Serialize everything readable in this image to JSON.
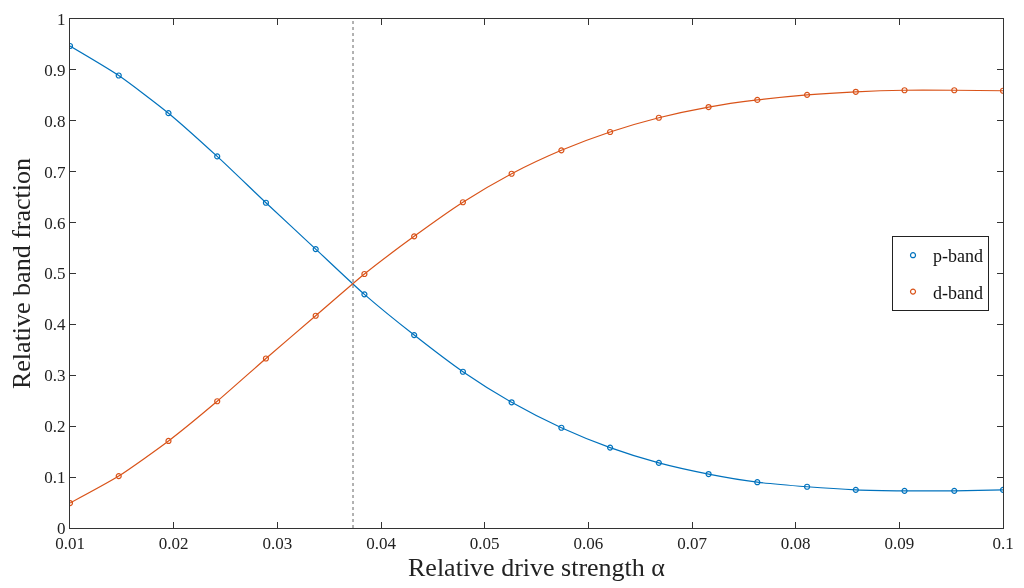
{
  "chart_data": {
    "type": "line",
    "xlabel": "Relative drive strength α",
    "ylabel": "Relative band fraction",
    "x": [
      0.01,
      0.0147,
      0.0195,
      0.0242,
      0.0289,
      0.0337,
      0.0384,
      0.0432,
      0.0479,
      0.0526,
      0.0574,
      0.0621,
      0.0668,
      0.0716,
      0.0763,
      0.0811,
      0.0858,
      0.0905,
      0.0953,
      0.1
    ],
    "series": [
      {
        "name": "p-band",
        "color": "#0072bd",
        "values": [
          0.947,
          0.889,
          0.815,
          0.73,
          0.639,
          0.548,
          0.459,
          0.379,
          0.307,
          0.247,
          0.197,
          0.158,
          0.128,
          0.106,
          0.09,
          0.081,
          0.075,
          0.073,
          0.073,
          0.075
        ]
      },
      {
        "name": "d-band",
        "color": "#d95319",
        "values": [
          0.049,
          0.102,
          0.171,
          0.249,
          0.333,
          0.417,
          0.499,
          0.573,
          0.64,
          0.696,
          0.742,
          0.778,
          0.806,
          0.827,
          0.841,
          0.851,
          0.857,
          0.86,
          0.86,
          0.859
        ]
      }
    ],
    "xlim": [
      0.01,
      0.1
    ],
    "xticks": [
      0.01,
      0.02,
      0.03,
      0.04,
      0.05,
      0.06,
      0.07,
      0.08,
      0.09,
      0.1
    ],
    "ylim": [
      0,
      1
    ],
    "yticks": [
      0,
      0.1,
      0.2,
      0.3,
      0.4,
      0.5,
      0.6,
      0.7,
      0.8,
      0.9,
      1
    ],
    "ref_lines": [
      {
        "axis": "x",
        "value": 0.0373,
        "color": "#808080",
        "line_style": "dotted"
      }
    ],
    "marker": "circle",
    "line_style": "solid",
    "legend": "right"
  }
}
